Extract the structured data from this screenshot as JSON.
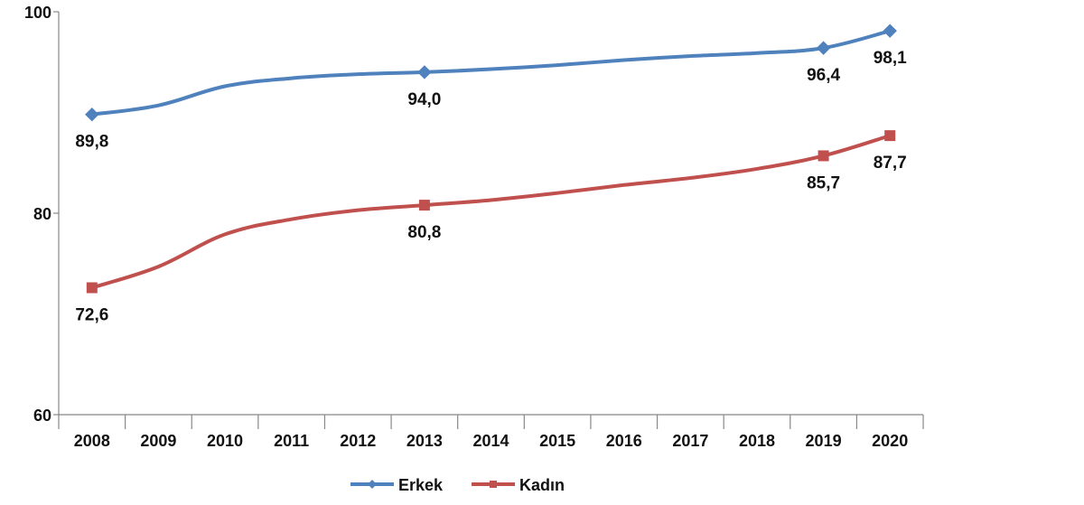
{
  "chart_data": {
    "type": "line",
    "categories": [
      "2008",
      "2009",
      "2010",
      "2011",
      "2012",
      "2013",
      "2014",
      "2015",
      "2016",
      "2017",
      "2018",
      "2019",
      "2020"
    ],
    "ylim": [
      60,
      100
    ],
    "yticks": [
      60,
      80,
      100
    ],
    "grid": false,
    "legend_position": "bottom",
    "series": [
      {
        "name": "Erkek",
        "color": "#4F81BD",
        "marker": "diamond",
        "values": [
          89.8,
          90.7,
          92.6,
          93.4,
          93.8,
          94.0,
          94.3,
          94.7,
          95.2,
          95.6,
          95.9,
          96.4,
          98.1
        ],
        "labels": [
          {
            "index": 0,
            "text": "89,8",
            "position": "below"
          },
          {
            "index": 5,
            "text": "94,0",
            "position": "below"
          },
          {
            "index": 11,
            "text": "96,4",
            "position": "below"
          },
          {
            "index": 12,
            "text": "98,1",
            "position": "below"
          }
        ]
      },
      {
        "name": "Kadın",
        "color": "#C0504D",
        "marker": "square",
        "values": [
          72.6,
          74.7,
          77.9,
          79.4,
          80.3,
          80.8,
          81.3,
          82.0,
          82.8,
          83.5,
          84.4,
          85.7,
          87.7
        ],
        "labels": [
          {
            "index": 0,
            "text": "72,6",
            "position": "below"
          },
          {
            "index": 5,
            "text": "80,8",
            "position": "below"
          },
          {
            "index": 11,
            "text": "85,7",
            "position": "below"
          },
          {
            "index": 12,
            "text": "87,7",
            "position": "below"
          }
        ]
      }
    ]
  }
}
